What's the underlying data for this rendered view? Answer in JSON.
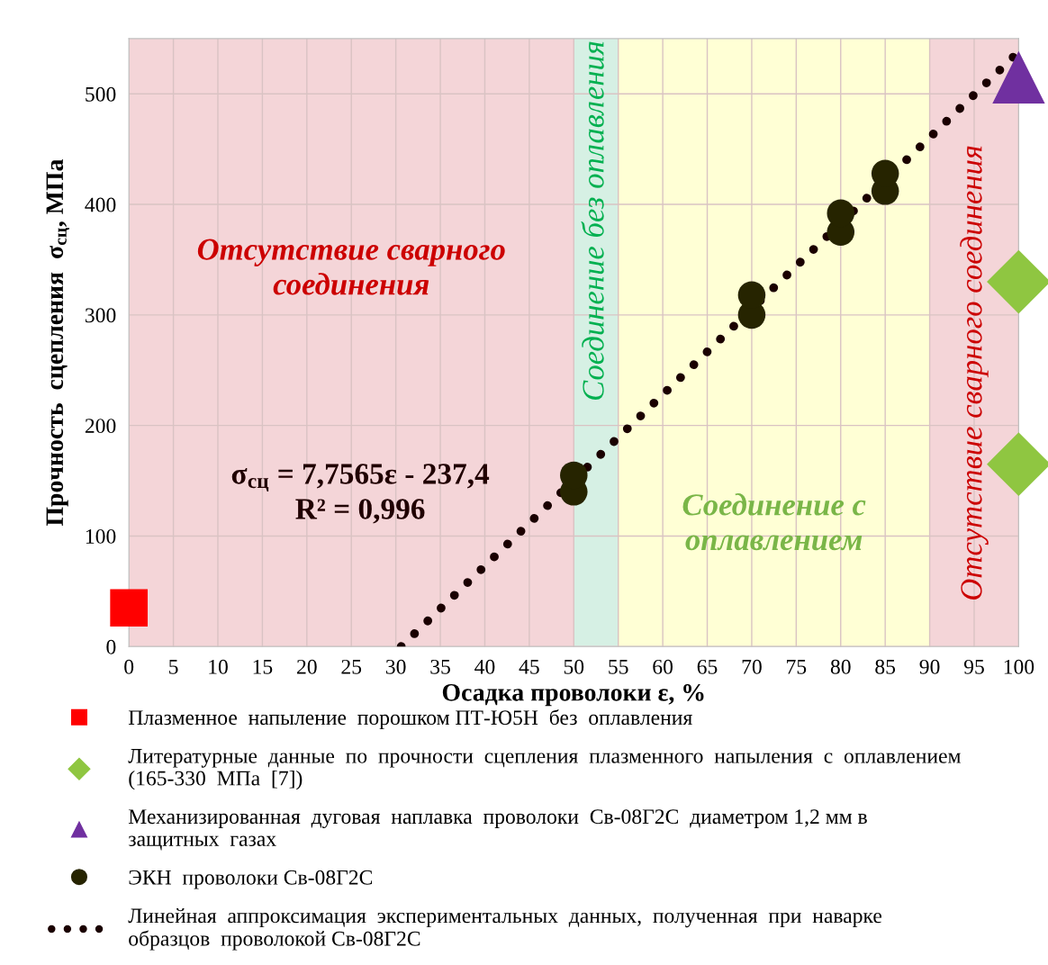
{
  "chart_data": {
    "type": "scatter",
    "xlabel": "Осадка проволоки ε, %",
    "ylabel": "Прочность  сцепления  σ$_{сц}$, МПа",
    "xlim": [
      0,
      100
    ],
    "ylim": [
      0,
      550
    ],
    "xticks": [
      0,
      5,
      10,
      15,
      20,
      25,
      30,
      35,
      40,
      45,
      50,
      55,
      60,
      65,
      70,
      75,
      80,
      85,
      90,
      95,
      100
    ],
    "yticks": [
      0,
      100,
      200,
      300,
      400,
      500
    ],
    "grid": true,
    "legend": "bottom",
    "bands": [
      {
        "axis": "x",
        "from": 0,
        "to": 50,
        "color": "#f4d5d8",
        "label": "Отсутствие сварного\nсоединения"
      },
      {
        "axis": "x",
        "from": 50,
        "to": 55,
        "color": "#d6f0e4",
        "label": "Соединение без оплавления"
      },
      {
        "axis": "x",
        "from": 55,
        "to": 90,
        "color": "#ffffd5",
        "label": "Соединение с\nоплавлением"
      },
      {
        "axis": "x",
        "from": 90,
        "to": 100,
        "color": "#f4d5d8",
        "label": "Отсутствие сварного соединения"
      }
    ],
    "annotations": [
      "σ$_{сц}$ = 7,7565ε - 237,4\nR² = 0,996"
    ],
    "series": [
      {
        "name": "Плазменное  напыление  порошком ПТ-Ю5Н  без  оплавления",
        "color": "#ff0000",
        "marker": "square",
        "x": [
          0
        ],
        "values": [
          35
        ]
      },
      {
        "name": "Литературные  данные  по  прочности  сцепления  плазменного  напыления  с  оплавлением\n(165-330  МПа  [7])",
        "color": "#8fc641",
        "marker": "diamond",
        "x": [
          100,
          100
        ],
        "values": [
          330,
          165
        ]
      },
      {
        "name": "Механизированная  дуговая  наплавка  проволоки  Св-08Г2С  диаметром 1,2 мм в\nзащитных  газах",
        "color": "#7030a0",
        "marker": "triangle",
        "x": [
          100
        ],
        "values": [
          515
        ]
      },
      {
        "name": "ЭКН  проволоки Св-08Г2С",
        "color": "#262400",
        "marker": "circle",
        "x": [
          50,
          50,
          70,
          70,
          80,
          80,
          85,
          85
        ],
        "values": [
          140,
          155,
          300,
          318,
          375,
          392,
          412,
          428
        ]
      },
      {
        "name": "Линейная  аппроксимация  экспериментальных  данных,  полученная  при  наварке\nобразцов  проволокой Св-08Г2С",
        "type": "line",
        "line_style": "dotted",
        "marker": "none",
        "color": "#1a0000",
        "x": [
          30.6,
          100
        ],
        "values": [
          0,
          538
        ]
      }
    ]
  }
}
